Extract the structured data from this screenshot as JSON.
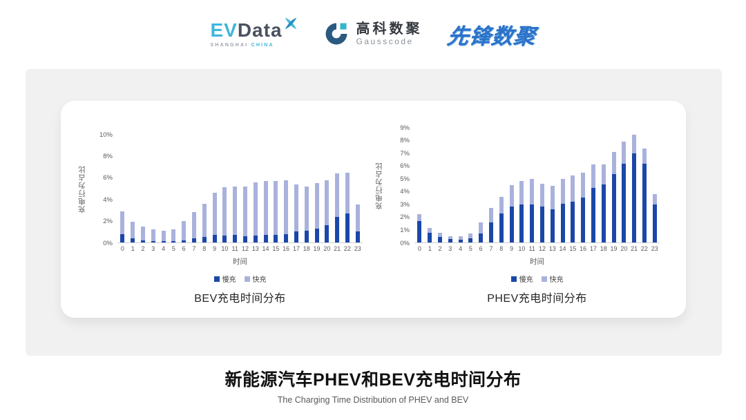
{
  "header": {
    "evdata": {
      "name_left": "EV",
      "name_right": "Data",
      "tagline_left": "SHANGHAI",
      "tagline_right": "CHINA",
      "accent_color": "#3fb6dc",
      "dark_color": "#4a5160"
    },
    "gausscode": {
      "cn_name": "高科数聚",
      "en_name": "Gausscode",
      "mark_color": "#2a5a80",
      "accent_color": "#35b6c9"
    },
    "xianfeng": {
      "text": "先锋数聚",
      "color": "#2b72c9"
    }
  },
  "chart_data": [
    {
      "type": "bar",
      "stacked": true,
      "title": "BEV充电时间分布",
      "xlabel": "时间",
      "ylabel": "充电行为占比",
      "grid": false,
      "legend_position": "bottom",
      "ylim": [
        0,
        10
      ],
      "yticks": [
        "0%",
        "2%",
        "4%",
        "6%",
        "8%",
        "10%"
      ],
      "ytick_values": [
        0,
        2,
        4,
        6,
        8,
        10
      ],
      "categories": [
        "0",
        "1",
        "2",
        "3",
        "4",
        "5",
        "6",
        "7",
        "8",
        "9",
        "10",
        "11",
        "12",
        "13",
        "14",
        "15",
        "16",
        "17",
        "18",
        "19",
        "20",
        "21",
        "22",
        "23"
      ],
      "series": [
        {
          "name": "慢充",
          "color": "#1a47a8",
          "values": [
            0.8,
            0.4,
            0.2,
            0.15,
            0.1,
            0.15,
            0.2,
            0.4,
            0.5,
            0.7,
            0.65,
            0.7,
            0.6,
            0.65,
            0.7,
            0.7,
            0.8,
            1.0,
            1.1,
            1.3,
            1.6,
            2.4,
            2.7,
            1.0
          ]
        },
        {
          "name": "快充",
          "color": "#a9b2dc",
          "values": [
            2.1,
            1.5,
            1.3,
            1.05,
            1.0,
            1.05,
            1.8,
            2.4,
            3.1,
            3.9,
            4.45,
            4.5,
            4.6,
            4.95,
            5.0,
            5.0,
            5.0,
            4.4,
            4.1,
            4.2,
            4.2,
            4.0,
            3.8,
            2.5
          ]
        }
      ]
    },
    {
      "type": "bar",
      "stacked": true,
      "title": "PHEV充电时间分布",
      "xlabel": "时间",
      "ylabel": "充电行为占比",
      "grid": false,
      "legend_position": "bottom",
      "ylim": [
        0,
        9
      ],
      "yticks": [
        "0%",
        "1%",
        "2%",
        "3%",
        "4%",
        "5%",
        "6%",
        "7%",
        "8%",
        "9%"
      ],
      "ytick_values": [
        0,
        1,
        2,
        3,
        4,
        5,
        6,
        7,
        8,
        9
      ],
      "categories": [
        "0",
        "1",
        "2",
        "3",
        "4",
        "5",
        "6",
        "7",
        "8",
        "9",
        "10",
        "11",
        "12",
        "13",
        "14",
        "15",
        "16",
        "17",
        "18",
        "19",
        "20",
        "21",
        "22",
        "23"
      ],
      "series": [
        {
          "name": "慢充",
          "color": "#1a47a8",
          "values": [
            1.7,
            0.75,
            0.45,
            0.25,
            0.2,
            0.3,
            0.7,
            1.6,
            2.3,
            2.8,
            3.0,
            3.0,
            2.8,
            2.6,
            3.05,
            3.2,
            3.55,
            4.3,
            4.55,
            5.35,
            6.2,
            7.0,
            6.2,
            3.0
          ]
        },
        {
          "name": "快充",
          "color": "#a9b2dc",
          "values": [
            0.5,
            0.4,
            0.3,
            0.25,
            0.3,
            0.4,
            0.9,
            1.1,
            1.3,
            1.7,
            1.8,
            2.0,
            1.8,
            1.85,
            1.95,
            2.05,
            1.95,
            1.85,
            1.6,
            1.75,
            1.7,
            1.45,
            1.15,
            0.8
          ]
        }
      ]
    }
  ],
  "footer": {
    "title": "新能源汽车PHEV和BEV充电时间分布",
    "subtitle": "The Charging Time Distribution of PHEV and BEV"
  }
}
